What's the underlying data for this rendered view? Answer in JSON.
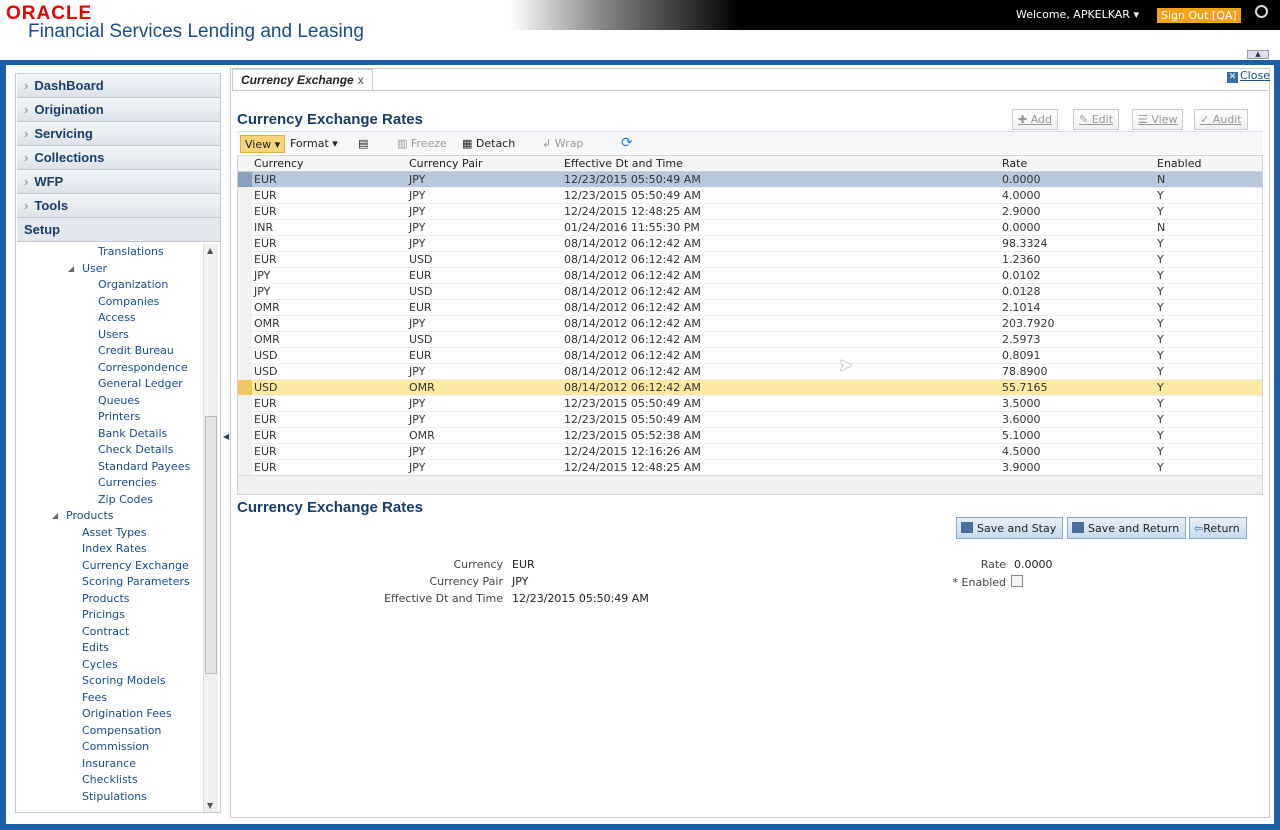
{
  "header": {
    "logo": "ORACLE",
    "app_title": "Financial Services Lending and Leasing",
    "welcome": "Welcome, APKELKAR ▾",
    "sign_out": "Sign Out [QA]"
  },
  "sidebar": {
    "nav": [
      "DashBoard",
      "Origination",
      "Servicing",
      "Collections",
      "WFP",
      "Tools",
      "Setup"
    ],
    "tree": [
      {
        "label": "Translations",
        "level": 2
      },
      {
        "label": "User",
        "level": 1,
        "expanded": true
      },
      {
        "label": "Organization",
        "level": 2
      },
      {
        "label": "Companies",
        "level": 2
      },
      {
        "label": "Access",
        "level": 2
      },
      {
        "label": "Users",
        "level": 2
      },
      {
        "label": "Credit Bureau",
        "level": 2
      },
      {
        "label": "Correspondence",
        "level": 2
      },
      {
        "label": "General Ledger",
        "level": 2
      },
      {
        "label": "Queues",
        "level": 2
      },
      {
        "label": "Printers",
        "level": 2
      },
      {
        "label": "Bank Details",
        "level": 2
      },
      {
        "label": "Check Details",
        "level": 2
      },
      {
        "label": "Standard Payees",
        "level": 2
      },
      {
        "label": "Currencies",
        "level": 2
      },
      {
        "label": "Zip Codes",
        "level": 2
      },
      {
        "label": "Products",
        "level": 0,
        "expanded": true
      },
      {
        "label": "Asset Types",
        "level": 1
      },
      {
        "label": "Index Rates",
        "level": 1
      },
      {
        "label": "Currency Exchange",
        "level": 1
      },
      {
        "label": "Scoring Parameters",
        "level": 1
      },
      {
        "label": "Products",
        "level": 1
      },
      {
        "label": "Pricings",
        "level": 1
      },
      {
        "label": "Contract",
        "level": 1
      },
      {
        "label": "Edits",
        "level": 1
      },
      {
        "label": "Cycles",
        "level": 1
      },
      {
        "label": "Scoring Models",
        "level": 1
      },
      {
        "label": "Fees",
        "level": 1
      },
      {
        "label": "Origination Fees",
        "level": 1
      },
      {
        "label": "Compensation",
        "level": 1
      },
      {
        "label": "Commission",
        "level": 1
      },
      {
        "label": "Insurance",
        "level": 1
      },
      {
        "label": "Checklists",
        "level": 1
      },
      {
        "label": "Stipulations",
        "level": 1
      }
    ]
  },
  "tab": {
    "label": "Currency Exchange",
    "close": "x"
  },
  "close_label": "Close",
  "grid_section": {
    "title": "Currency Exchange Rates",
    "actions": [
      "Add",
      "Edit",
      "View",
      "Audit"
    ],
    "toolbar": {
      "view": "View ▾",
      "format": "Format ▾",
      "freeze": "Freeze",
      "detach": "Detach",
      "wrap": "Wrap"
    },
    "columns": [
      "Currency",
      "Currency Pair",
      "Effective Dt and Time",
      "Rate",
      "Enabled"
    ],
    "rows": [
      [
        "EUR",
        "JPY",
        "12/23/2015 05:50:49 AM",
        "0.0000",
        "N"
      ],
      [
        "EUR",
        "JPY",
        "12/23/2015 05:50:49 AM",
        "4.0000",
        "Y"
      ],
      [
        "EUR",
        "JPY",
        "12/24/2015 12:48:25 AM",
        "2.9000",
        "Y"
      ],
      [
        "INR",
        "JPY",
        "01/24/2016 11:55:30 PM",
        "0.0000",
        "N"
      ],
      [
        "EUR",
        "JPY",
        "08/14/2012 06:12:42 AM",
        "98.3324",
        "Y"
      ],
      [
        "EUR",
        "USD",
        "08/14/2012 06:12:42 AM",
        "1.2360",
        "Y"
      ],
      [
        "JPY",
        "EUR",
        "08/14/2012 06:12:42 AM",
        "0.0102",
        "Y"
      ],
      [
        "JPY",
        "USD",
        "08/14/2012 06:12:42 AM",
        "0.0128",
        "Y"
      ],
      [
        "OMR",
        "EUR",
        "08/14/2012 06:12:42 AM",
        "2.1014",
        "Y"
      ],
      [
        "OMR",
        "JPY",
        "08/14/2012 06:12:42 AM",
        "203.7920",
        "Y"
      ],
      [
        "OMR",
        "USD",
        "08/14/2012 06:12:42 AM",
        "2.5973",
        "Y"
      ],
      [
        "USD",
        "EUR",
        "08/14/2012 06:12:42 AM",
        "0.8091",
        "Y"
      ],
      [
        "USD",
        "JPY",
        "08/14/2012 06:12:42 AM",
        "78.8900",
        "Y"
      ],
      [
        "USD",
        "OMR",
        "08/14/2012 06:12:42 AM",
        "55.7165",
        "Y"
      ],
      [
        "EUR",
        "JPY",
        "12/23/2015 05:50:49 AM",
        "3.5000",
        "Y"
      ],
      [
        "EUR",
        "JPY",
        "12/23/2015 05:50:49 AM",
        "3.6000",
        "Y"
      ],
      [
        "EUR",
        "OMR",
        "12/23/2015 05:52:38 AM",
        "5.1000",
        "Y"
      ],
      [
        "EUR",
        "JPY",
        "12/24/2015 12:16:26 AM",
        "4.5000",
        "Y"
      ],
      [
        "EUR",
        "JPY",
        "12/24/2015 12:48:25 AM",
        "3.9000",
        "Y"
      ]
    ],
    "selected_row": 0,
    "hovered_row": 13
  },
  "detail": {
    "title": "Currency Exchange Rates",
    "buttons": [
      "Save and Stay",
      "Save and Return",
      "Return"
    ],
    "fields": {
      "currency_label": "Currency",
      "currency": "EUR",
      "pair_label": "Currency Pair",
      "pair": "JPY",
      "dt_label": "Effective Dt and Time",
      "dt": "12/23/2015 05:50:49 AM",
      "rate_label": "Rate",
      "rate": "0.0000",
      "enabled_label": "* Enabled"
    },
    "enabled": false
  }
}
